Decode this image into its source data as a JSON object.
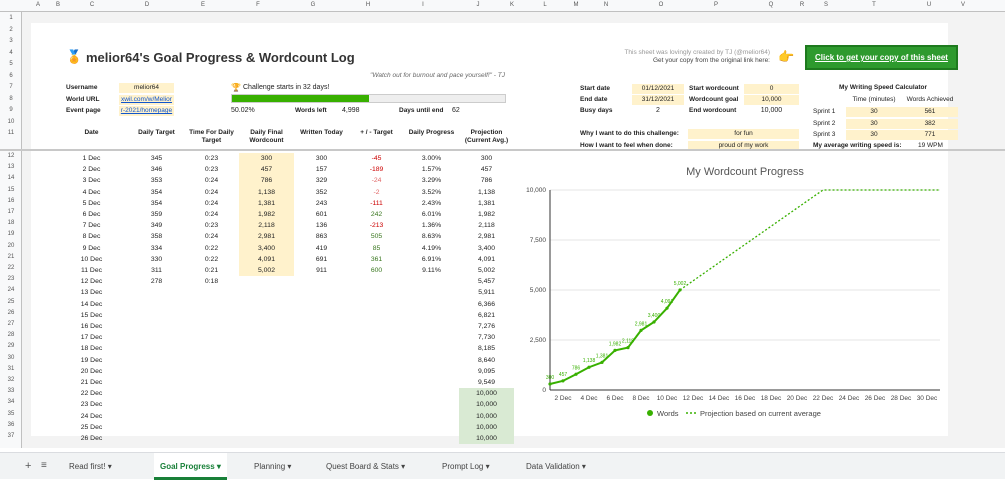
{
  "columns": [
    "A",
    "B",
    "C",
    "D",
    "E",
    "F",
    "G",
    "H",
    "I",
    "J",
    "K",
    "L",
    "M",
    "N",
    "O",
    "P",
    "Q",
    "R",
    "S",
    "T",
    "U",
    "V"
  ],
  "rows": [
    "1",
    "2",
    "3",
    "4",
    "5",
    "6",
    "7",
    "8",
    "9",
    "10",
    "11",
    "12",
    "13",
    "14",
    "15",
    "16",
    "17",
    "18",
    "19",
    "20",
    "21",
    "22",
    "23",
    "24",
    "25",
    "26",
    "27",
    "28",
    "29",
    "30",
    "31",
    "32",
    "33",
    "34",
    "35",
    "36",
    "37"
  ],
  "header": {
    "title": "melior64's Goal Progress & Wordcount Log",
    "credit_line1": "This sheet was lovingly created by TJ (@melior64)",
    "credit_line2": "Get your copy from the original link here:",
    "copy_button": "Click to get your copy of this sheet",
    "quote": "\"Watch out for burnout and pace yourself!\" - TJ"
  },
  "info": {
    "username_label": "Username",
    "username": "melior64",
    "world_url_label": "World URL",
    "world_url": "xwil.com/w/Melior",
    "event_page_label": "Event page",
    "event_page": "r-2021/homepage",
    "challenge_text": "Challenge starts in 32 days!",
    "progress_pct": "50.02%",
    "progress_fraction": 0.5002,
    "words_left_label": "Words left",
    "words_left": "4,998",
    "days_until_end_label": "Days until end",
    "days_until_end": "62"
  },
  "dates": {
    "start_label": "Start date",
    "start": "01/12/2021",
    "end_label": "End date",
    "end": "31/12/2021",
    "busy_label": "Busy days",
    "busy": "2",
    "start_wc_label": "Start wordcount",
    "start_wc": "0",
    "goal_label": "Wordcount goal",
    "goal": "10,000",
    "end_wc_label": "End wordcount",
    "end_wc": "10,000",
    "why_label": "Why I want to do this challenge:",
    "why": "for fun",
    "feel_label": "How I want to feel when done:",
    "feel": "proud of my work"
  },
  "calculator": {
    "title": "My Writing Speed Calculator",
    "col_time": "Time (minutes)",
    "col_words": "Words Achieved",
    "rows": [
      {
        "name": "Sprint 1",
        "time": "30",
        "words": "561"
      },
      {
        "name": "Sprint 2",
        "time": "30",
        "words": "382"
      },
      {
        "name": "Sprint 3",
        "time": "30",
        "words": "771"
      }
    ],
    "avg_label": "My average writing speed is:",
    "avg": "19 WPM"
  },
  "table": {
    "headers": [
      "Date",
      "Daily Target",
      "Time For Daily Target",
      "Daily Final Wordcount",
      "Written Today",
      "+ / - Target",
      "Daily Progress",
      "Projection (Current Avg.)"
    ],
    "rows": [
      [
        "1 Dec",
        "345",
        "0:23",
        "300",
        "300",
        "-45",
        "3.00%",
        "300"
      ],
      [
        "2 Dec",
        "346",
        "0:23",
        "457",
        "157",
        "-189",
        "1.57%",
        "457"
      ],
      [
        "3 Dec",
        "353",
        "0:24",
        "786",
        "329",
        "-24",
        "3.29%",
        "786"
      ],
      [
        "4 Dec",
        "354",
        "0:24",
        "1,138",
        "352",
        "-2",
        "3.52%",
        "1,138"
      ],
      [
        "5 Dec",
        "354",
        "0:24",
        "1,381",
        "243",
        "-111",
        "2.43%",
        "1,381"
      ],
      [
        "6 Dec",
        "359",
        "0:24",
        "1,982",
        "601",
        "242",
        "6.01%",
        "1,982"
      ],
      [
        "7 Dec",
        "349",
        "0:23",
        "2,118",
        "136",
        "-213",
        "1.36%",
        "2,118"
      ],
      [
        "8 Dec",
        "358",
        "0:24",
        "2,981",
        "863",
        "505",
        "8.63%",
        "2,981"
      ],
      [
        "9 Dec",
        "334",
        "0:22",
        "3,400",
        "419",
        "85",
        "4.19%",
        "3,400"
      ],
      [
        "10 Dec",
        "330",
        "0:22",
        "4,091",
        "691",
        "361",
        "6.91%",
        "4,091"
      ],
      [
        "11 Dec",
        "311",
        "0:21",
        "5,002",
        "911",
        "600",
        "9.11%",
        "5,002"
      ],
      [
        "12 Dec",
        "278",
        "0:18",
        "",
        "",
        "",
        "",
        "5,457"
      ],
      [
        "13 Dec",
        "",
        "",
        "",
        "",
        "",
        "",
        "5,911"
      ],
      [
        "14 Dec",
        "",
        "",
        "",
        "",
        "",
        "",
        "6,366"
      ],
      [
        "15 Dec",
        "",
        "",
        "",
        "",
        "",
        "",
        "6,821"
      ],
      [
        "16 Dec",
        "",
        "",
        "",
        "",
        "",
        "",
        "7,276"
      ],
      [
        "17 Dec",
        "",
        "",
        "",
        "",
        "",
        "",
        "7,730"
      ],
      [
        "18 Dec",
        "",
        "",
        "",
        "",
        "",
        "",
        "8,185"
      ],
      [
        "19 Dec",
        "",
        "",
        "",
        "",
        "",
        "",
        "8,640"
      ],
      [
        "20 Dec",
        "",
        "",
        "",
        "",
        "",
        "",
        "9,095"
      ],
      [
        "21 Dec",
        "",
        "",
        "",
        "",
        "",
        "",
        "9,549"
      ],
      [
        "22 Dec",
        "",
        "",
        "",
        "",
        "",
        "",
        "10,000"
      ],
      [
        "23 Dec",
        "",
        "",
        "",
        "",
        "",
        "",
        "10,000"
      ],
      [
        "24 Dec",
        "",
        "",
        "",
        "",
        "",
        "",
        "10,000"
      ],
      [
        "25 Dec",
        "",
        "",
        "",
        "",
        "",
        "",
        "10,000"
      ],
      [
        "26 Dec",
        "",
        "",
        "",
        "",
        "",
        "",
        "10,000"
      ]
    ]
  },
  "tabs": [
    {
      "label": "Read first!"
    },
    {
      "label": "Goal Progress"
    },
    {
      "label": "Planning"
    },
    {
      "label": "Quest Board & Stats"
    },
    {
      "label": "Prompt Log"
    },
    {
      "label": "Data Validation"
    }
  ],
  "colors": {
    "accent": "#38b000",
    "button": "#2e9a2e",
    "highlight": "#fff2cc",
    "green_cell": "#d9ead3"
  },
  "chart_data": {
    "type": "line",
    "title": "My Wordcount Progress",
    "ylim": [
      0,
      10000
    ],
    "yticks": [
      "0",
      "2,500",
      "5,000",
      "7,500",
      "10,000"
    ],
    "xticks": [
      "2 Dec",
      "4 Dec",
      "6 Dec",
      "8 Dec",
      "10 Dec",
      "12 Dec",
      "14 Dec",
      "16 Dec",
      "18 Dec",
      "20 Dec",
      "22 Dec",
      "24 Dec",
      "26 Dec",
      "28 Dec",
      "30 Dec"
    ],
    "series": [
      {
        "name": "Words",
        "x": [
          1,
          2,
          3,
          4,
          5,
          6,
          7,
          8,
          9,
          10,
          11
        ],
        "values": [
          300,
          457,
          786,
          1138,
          1381,
          1982,
          2118,
          2981,
          3400,
          4091,
          5002
        ],
        "labels": [
          "300",
          "457",
          "786",
          "1,138",
          "1,381",
          "1,982",
          "2,118",
          "2,981",
          "3,400",
          "4,091",
          "5,002"
        ]
      },
      {
        "name": "Projection based on current average",
        "x": [
          11,
          12,
          13,
          14,
          15,
          16,
          17,
          18,
          19,
          20,
          21,
          22,
          31
        ],
        "values": [
          5002,
          5457,
          5911,
          6366,
          6821,
          7276,
          7730,
          8185,
          8640,
          9095,
          9549,
          10000,
          10000
        ]
      }
    ],
    "xrange": [
      1,
      31
    ],
    "legend": "bottom"
  }
}
